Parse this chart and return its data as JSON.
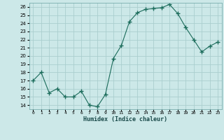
{
  "x": [
    0,
    1,
    2,
    3,
    4,
    5,
    6,
    7,
    8,
    9,
    10,
    11,
    12,
    13,
    14,
    15,
    16,
    17,
    18,
    19,
    20,
    21,
    22,
    23
  ],
  "y": [
    17,
    18,
    15.5,
    16,
    15,
    15,
    15.7,
    14,
    13.8,
    15.3,
    19.7,
    21.3,
    24.2,
    25.3,
    25.7,
    25.8,
    25.9,
    26.3,
    25.2,
    23.5,
    22,
    20.5,
    21.2,
    21.7
  ],
  "line_color": "#1a6b5a",
  "marker": "+",
  "marker_size": 4,
  "bg_color": "#cce8e8",
  "grid_color": "#aacece",
  "xlabel": "Humidex (Indice chaleur)",
  "ylim": [
    13.5,
    26.5
  ],
  "yticks": [
    14,
    15,
    16,
    17,
    18,
    19,
    20,
    21,
    22,
    23,
    24,
    25,
    26
  ],
  "xlim": [
    -0.5,
    23.5
  ],
  "xtick_labels": [
    "0",
    "1",
    "2",
    "3",
    "4",
    "5",
    "6",
    "7",
    "8",
    "9",
    "10",
    "11",
    "12",
    "13",
    "14",
    "15",
    "16",
    "17",
    "18",
    "19",
    "20",
    "21",
    "22",
    "23"
  ]
}
